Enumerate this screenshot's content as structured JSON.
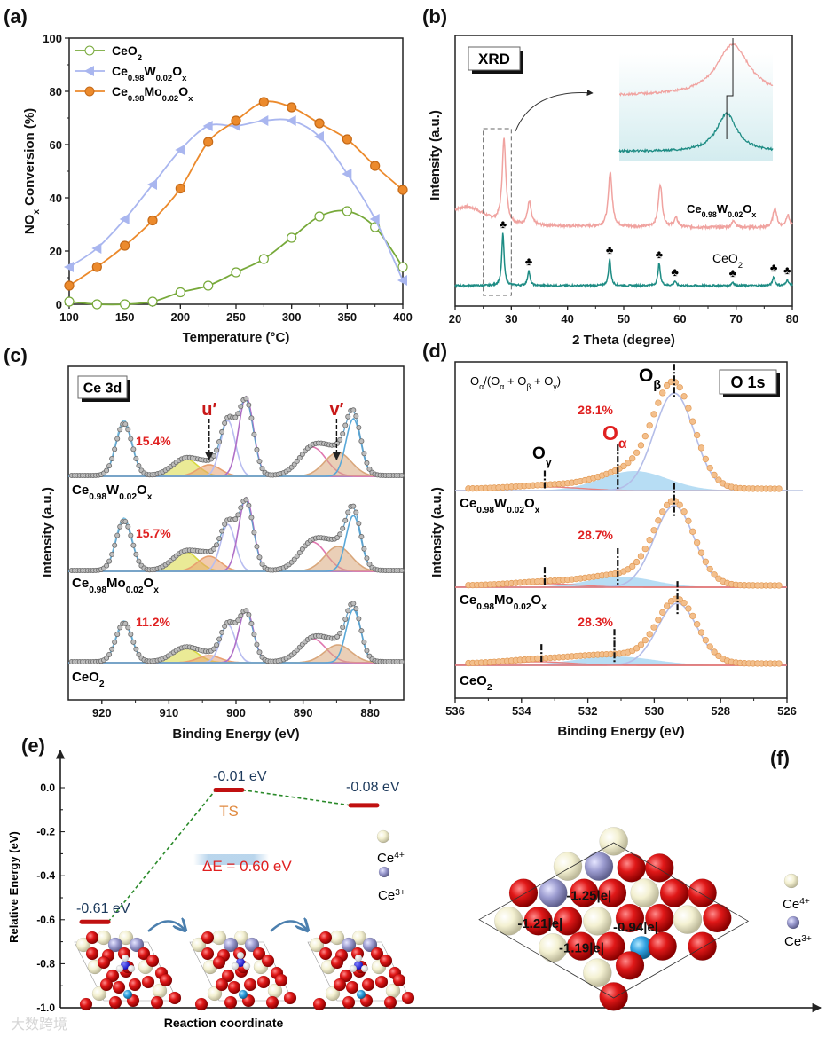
{
  "figure": {
    "panel_labels": [
      "(a)",
      "(b)",
      "(c)",
      "(d)",
      "(e)",
      "(f)"
    ],
    "watermark": "大数跨境"
  },
  "formulas": {
    "CeO2": [
      {
        "t": "CeO"
      },
      {
        "t": "2",
        "sub": true
      }
    ],
    "W": [
      {
        "t": "Ce"
      },
      {
        "t": "0.98",
        "sub": true
      },
      {
        "t": "W"
      },
      {
        "t": "0.02",
        "sub": true
      },
      {
        "t": "O"
      },
      {
        "t": "x",
        "sub": true
      }
    ],
    "Mo": [
      {
        "t": "Ce"
      },
      {
        "t": "0.98",
        "sub": true
      },
      {
        "t": "Mo"
      },
      {
        "t": "0.02",
        "sub": true
      },
      {
        "t": "O"
      },
      {
        "t": "x",
        "sub": true
      }
    ],
    "Ce4": [
      {
        "t": "Ce"
      },
      {
        "t": "4+",
        "sup": true
      }
    ],
    "Ce3": [
      {
        "t": "Ce"
      },
      {
        "t": "3+",
        "sup": true
      }
    ]
  },
  "colors": {
    "ceo2": "#77a93a",
    "w": "#a9b6ef",
    "mo": "#ec8a2c",
    "xrd_w": "#f0a3a0",
    "xrd_ceo2": "#1e8c84",
    "red_text": "#e02020",
    "level": "#c01010"
  },
  "chart_data": [
    {
      "panel": "(a)",
      "type": "line",
      "xlabel": "Temperature (°C)",
      "ylabel_parts": [
        {
          "t": "NO"
        },
        {
          "t": "x",
          "sub": true
        },
        {
          "t": " Conversion (%)"
        }
      ],
      "xlim": [
        100,
        400
      ],
      "ylim": [
        0,
        100
      ],
      "xticks": [
        100,
        150,
        200,
        250,
        300,
        350,
        400
      ],
      "yticks": [
        0,
        20,
        40,
        60,
        80,
        100
      ],
      "legend_position": "top-left",
      "x": [
        100,
        125,
        150,
        175,
        200,
        225,
        250,
        275,
        300,
        325,
        350,
        375,
        400
      ],
      "series": [
        {
          "formula": "CeO2",
          "marker": "open-circle",
          "color": "#77a93a",
          "values": [
            1,
            0,
            0,
            1,
            4.5,
            7,
            12,
            17,
            25,
            33,
            35,
            29,
            14
          ]
        },
        {
          "formula": "W",
          "marker": "left-triangle",
          "color": "#a9b6ef",
          "values": [
            14,
            21,
            32,
            45,
            58,
            67,
            67,
            69,
            69,
            63,
            49,
            32,
            9
          ]
        },
        {
          "formula": "Mo",
          "marker": "filled-circle",
          "color": "#ec8a2c",
          "values": [
            7,
            14,
            22,
            31.5,
            43.5,
            61,
            69,
            76,
            74,
            68,
            62,
            52,
            43
          ]
        }
      ]
    },
    {
      "panel": "(b)",
      "type": "line",
      "title_box": "XRD",
      "xlabel": "2 Theta (degree)",
      "ylabel": "Intensity (a.u.)",
      "xlim": [
        20,
        80
      ],
      "xticks": [
        20,
        30,
        40,
        50,
        60,
        70,
        80
      ],
      "marker_symbol": "♣",
      "inset_xlim": [
        25,
        30
      ],
      "series": [
        {
          "formula": "W",
          "color": "#f0a3a0",
          "fwhm": 0.8,
          "peaks": [
            [
              28.7,
              95
            ],
            [
              33.2,
              26
            ],
            [
              47.6,
              62
            ],
            [
              56.5,
              48
            ],
            [
              59.3,
              10
            ],
            [
              69.6,
              8
            ],
            [
              76.9,
              22
            ],
            [
              79.2,
              14
            ]
          ]
        },
        {
          "formula": "CeO2",
          "color": "#1e8c84",
          "fwhm": 0.5,
          "peaks": [
            [
              28.5,
              59
            ],
            [
              33.1,
              17
            ],
            [
              47.5,
              30
            ],
            [
              56.3,
              25
            ],
            [
              59.1,
              5
            ],
            [
              69.4,
              4
            ],
            [
              76.7,
              10
            ],
            [
              79.1,
              7
            ]
          ]
        }
      ]
    },
    {
      "panel": "(c)",
      "type": "line",
      "title_box": "Ce 3d",
      "xlabel": "Binding Energy (eV)",
      "ylabel": "Intensity (a.u.)",
      "xlim": [
        925,
        875
      ],
      "xticks": [
        920,
        910,
        900,
        890,
        880
      ],
      "peak_labels": [
        {
          "label": "u′",
          "x": 904
        },
        {
          "label": "v′",
          "x": 885
        }
      ],
      "components": [
        {
          "center": 916.7,
          "sigma": 1.2,
          "color": "#7fc0e0"
        },
        {
          "center": 907.6,
          "sigma": 1.9,
          "color": "#d8d840"
        },
        {
          "center": 904.0,
          "sigma": 1.7,
          "color": "#e8a070"
        },
        {
          "center": 901.2,
          "sigma": 1.1,
          "color": "#b8bdf0"
        },
        {
          "center": 898.5,
          "sigma": 1.1,
          "color": "#b070c8"
        },
        {
          "center": 888.6,
          "sigma": 2.0,
          "color": "#e078b0"
        },
        {
          "center": 884.8,
          "sigma": 2.0,
          "color": "#d9a77c"
        },
        {
          "center": 882.5,
          "sigma": 1.1,
          "color": "#5aa8d8"
        }
      ],
      "series": [
        {
          "formula": "W",
          "percent": "15.4%",
          "heights": [
            63,
            20,
            13,
            63,
            90,
            33,
            27,
            65
          ]
        },
        {
          "formula": "Mo",
          "percent": "15.7%",
          "heights": [
            60,
            22,
            17,
            53,
            83,
            33,
            28,
            63
          ]
        },
        {
          "formula": "CeO2",
          "percent": "11.2%",
          "heights": [
            47,
            17,
            8,
            43,
            60,
            27,
            20,
            60
          ]
        }
      ]
    },
    {
      "panel": "(d)",
      "type": "line",
      "title_box": "O 1s",
      "ratio_parts": [
        {
          "t": "O"
        },
        {
          "t": "α",
          "sub": true
        },
        {
          "t": "/(O"
        },
        {
          "t": "α",
          "sub": true
        },
        {
          "t": " + O"
        },
        {
          "t": "β",
          "sub": true
        },
        {
          "t": " + O"
        },
        {
          "t": "γ",
          "sub": true
        },
        {
          "t": ")"
        }
      ],
      "labels": {
        "beta": [
          {
            "t": "O"
          },
          {
            "t": "β",
            "sub": true
          }
        ],
        "alpha": [
          {
            "t": "O"
          },
          {
            "t": "α",
            "sub": true
          }
        ],
        "gamma": [
          {
            "t": "O"
          },
          {
            "t": "γ",
            "sub": true
          }
        ]
      },
      "xlabel": "Binding Energy (eV)",
      "ylabel": "Intensity (a.u.)",
      "xlim": [
        536,
        526
      ],
      "xticks": [
        536,
        534,
        532,
        530,
        528,
        526
      ],
      "series": [
        {
          "formula": "W",
          "percent": "28.1%",
          "components": [
            [
              529.4,
              110,
              0.6
            ],
            [
              530.6,
              22,
              1.0
            ],
            [
              533.2,
              4,
              1.0
            ]
          ],
          "marks": [
            529.4,
            531.1,
            533.3
          ]
        },
        {
          "formula": "Mo",
          "percent": "28.7%",
          "components": [
            [
              529.4,
              92,
              0.6
            ],
            [
              531.0,
              12,
              1.0
            ],
            [
              533.3,
              4,
              1.0
            ]
          ],
          "marks": [
            529.4,
            531.1,
            533.3
          ]
        },
        {
          "formula": "CeO2",
          "percent": "28.3%",
          "components": [
            [
              529.3,
              70,
              0.6
            ],
            [
              531.2,
              10,
              1.2
            ],
            [
              533.5,
              4,
              1.0
            ]
          ],
          "marks": [
            529.3,
            531.2,
            533.4
          ]
        }
      ]
    },
    {
      "panel": "(e)",
      "type": "line",
      "ylabel": "Relative Energy (eV)",
      "xlabel": "Reaction coordinate",
      "ylim": [
        -1.0,
        0.1
      ],
      "yticks": [
        "0.0",
        "-0.2",
        "-0.4",
        "-0.6",
        "-0.8",
        "-1.0"
      ],
      "yticks_values": [
        0,
        -0.2,
        -0.4,
        -0.6,
        -0.8,
        -1.0
      ],
      "states": [
        {
          "energy": -0.61,
          "label": "-0.61 eV"
        },
        {
          "energy": -0.01,
          "label": "-0.01 eV",
          "name": "TS"
        },
        {
          "energy": -0.08,
          "label": "-0.08 eV"
        }
      ],
      "barrier": "ΔE = 0.60 eV",
      "legend": [
        "Ce4",
        "Ce3"
      ]
    },
    {
      "panel": "(f)",
      "type": "diagram",
      "charges": [
        "-1.25|e|",
        "-1.21|e|",
        "-0.94|e|",
        "-1.19|e|"
      ],
      "legend": [
        "Ce4",
        "Ce3"
      ]
    }
  ]
}
